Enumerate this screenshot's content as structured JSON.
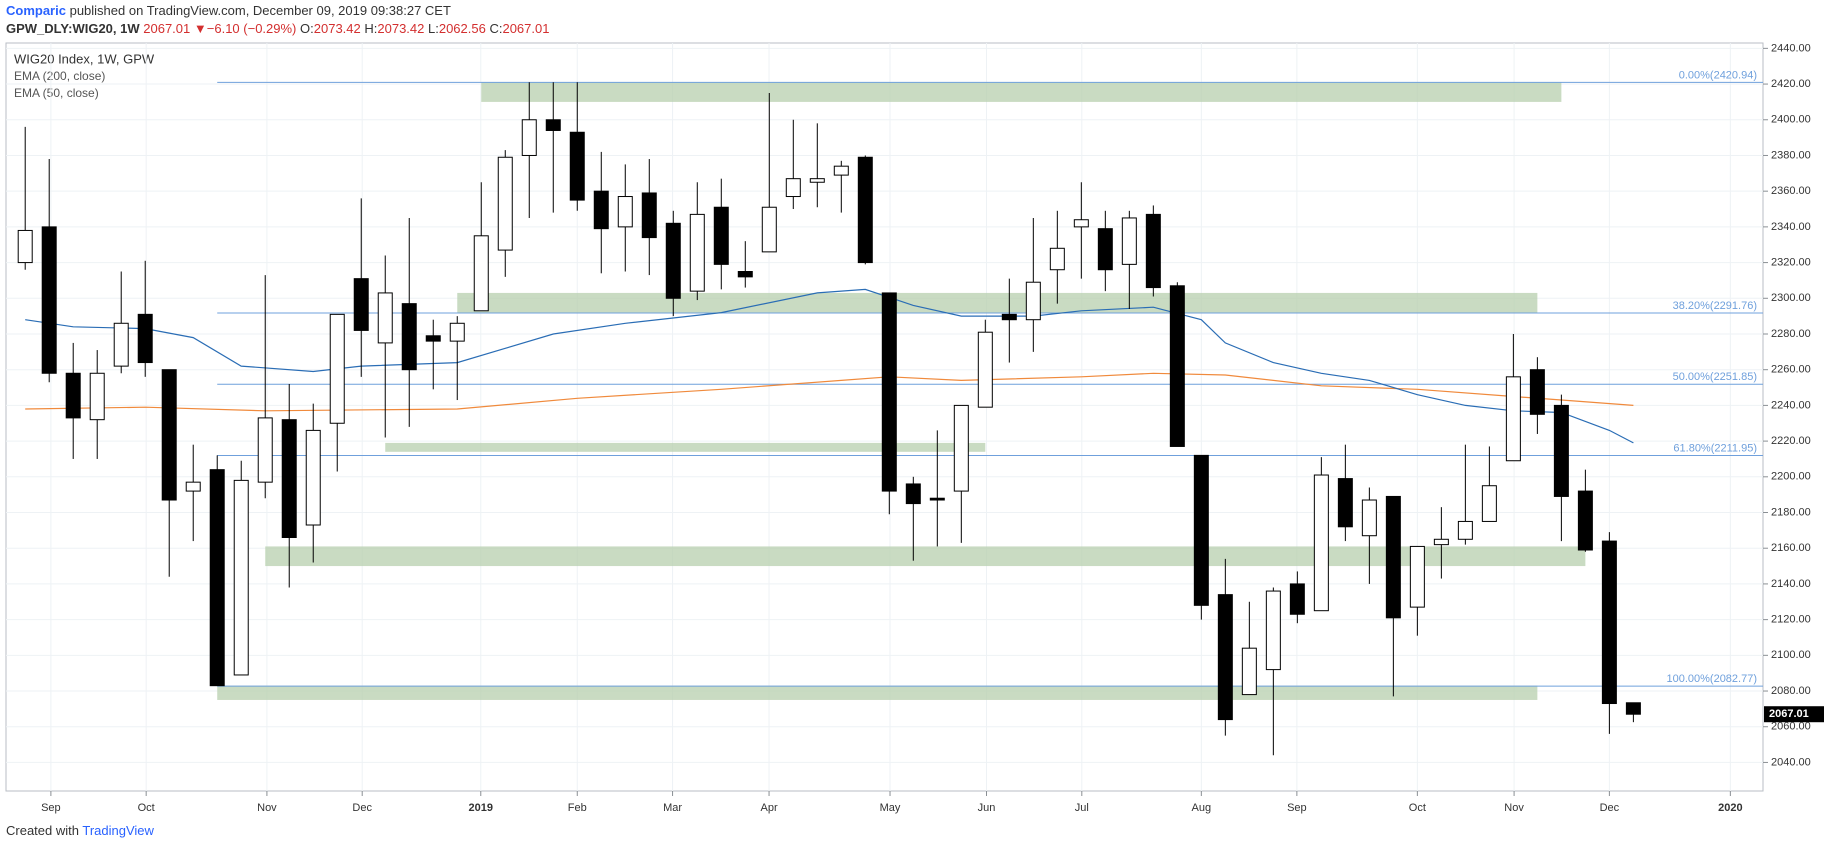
{
  "header": {
    "publisher": "Comparic",
    "published": "published on TradingView.com, December 09, 2019 09:38:27 CET",
    "symbol": "GPW_DLY:WIG20, 1W",
    "last": "2067.01",
    "arrow": "▼",
    "change": "−6.10 (−0.29%)",
    "o_label": "O:",
    "o": "2073.42",
    "h_label": "H:",
    "h": "2073.42",
    "l_label": "L:",
    "l": "2062.56",
    "c_label": "C:",
    "c": "2067.01"
  },
  "footer": {
    "created": "Created with",
    "brand": "TradingView"
  },
  "chart_data": {
    "type": "candlestick",
    "title": "WIG20 Index, 1W, GPW",
    "up_color": "#ffffff",
    "down_color": "#000000",
    "grid": true,
    "open": [
      2320,
      2340,
      2258,
      2232,
      2262,
      2291,
      2260,
      2192,
      2204,
      2089,
      2197,
      2232,
      2173,
      2230,
      2311,
      2275,
      2297,
      2279,
      2276,
      2293,
      2327,
      2380,
      2400,
      2393,
      2360,
      2340,
      2359,
      2342,
      2304,
      2351,
      2315,
      2326,
      2357,
      2365,
      2369,
      2379,
      2303,
      2196,
      2188,
      2192,
      2239,
      2291,
      2288,
      2316,
      2340,
      2339,
      2319,
      2347,
      2307,
      2212,
      2134,
      2078,
      2092,
      2140,
      2125,
      2199,
      2167,
      2189,
      2127,
      2162,
      2165,
      2175,
      2209,
      2260,
      2240,
      2192,
      2164,
      2073.42
    ],
    "high": [
      2396,
      2378,
      2275,
      2271,
      2315,
      2321,
      2260,
      2218,
      2212,
      2209,
      2313,
      2252,
      2241,
      2291,
      2356,
      2324,
      2345,
      2288,
      2290,
      2365,
      2383,
      2421,
      2421,
      2421,
      2382,
      2375,
      2378,
      2349,
      2365,
      2367,
      2332,
      2415,
      2400,
      2398,
      2377,
      2380,
      2303,
      2200,
      2226,
      2240,
      2288,
      2311,
      2345,
      2349,
      2365,
      2349,
      2349,
      2352,
      2309,
      2212,
      2154,
      2130,
      2138,
      2147,
      2211,
      2218,
      2194,
      2189,
      2161,
      2183,
      2218,
      2217,
      2280,
      2267,
      2246,
      2204,
      2169,
      2073.42
    ],
    "low": [
      2316,
      2253,
      2210,
      2210,
      2258,
      2256,
      2144,
      2164,
      2083,
      2089,
      2188,
      2138,
      2152,
      2203,
      2256,
      2222,
      2228,
      2249,
      2243,
      2293,
      2312,
      2345,
      2348,
      2349,
      2314,
      2315,
      2313,
      2290,
      2299,
      2305,
      2306,
      2326,
      2350,
      2351,
      2348,
      2319,
      2179,
      2153,
      2161,
      2163,
      2239,
      2264,
      2270,
      2297,
      2311,
      2304,
      2294,
      2301,
      2217,
      2120,
      2055,
      2078,
      2044,
      2118,
      2125,
      2164,
      2140,
      2077,
      2111,
      2143,
      2162,
      2175,
      2209,
      2224,
      2164,
      2158,
      2056,
      2062.56
    ],
    "close": [
      2338,
      2258,
      2233,
      2258,
      2286,
      2264,
      2187,
      2197,
      2083,
      2198,
      2233,
      2166,
      2226,
      2291,
      2282,
      2303,
      2260,
      2276,
      2286,
      2335,
      2379,
      2400,
      2394,
      2355,
      2339,
      2357,
      2334,
      2300,
      2347,
      2319,
      2312,
      2351,
      2367,
      2367,
      2374,
      2320,
      2192,
      2185,
      2187,
      2240,
      2281,
      2288,
      2309,
      2328,
      2344,
      2316,
      2345,
      2306,
      2217,
      2128,
      2064,
      2104,
      2136,
      2123,
      2201,
      2172,
      2187,
      2121,
      2161,
      2165,
      2175,
      2195,
      2256,
      2235,
      2189,
      2159,
      2073,
      2067.01
    ],
    "series": [
      {
        "name": "EMA (200, close)",
        "color": "#f08a3c",
        "x": [
          0,
          5,
          10,
          18,
          23,
          29,
          34,
          36,
          39,
          44,
          47,
          50,
          54,
          58,
          62,
          64,
          67
        ],
        "values": [
          2238,
          2239,
          2237,
          2238,
          2244,
          2249,
          2254,
          2256,
          2254,
          2256,
          2258,
          2257,
          2251,
          2249,
          2245,
          2243,
          2240
        ]
      },
      {
        "name": "EMA (50, close)",
        "color": "#2a6db5",
        "x": [
          0,
          2,
          5,
          7,
          9,
          12,
          14,
          18,
          20,
          22,
          25,
          29,
          33,
          35,
          37,
          39,
          42,
          44,
          47,
          49,
          50,
          52,
          54,
          56,
          58,
          60,
          62,
          64,
          66,
          67
        ],
        "values": [
          2288,
          2284,
          2283,
          2278,
          2262,
          2259,
          2262,
          2264,
          2272,
          2280,
          2286,
          2292,
          2303,
          2305,
          2296,
          2290,
          2290,
          2293,
          2295,
          2288,
          2275,
          2264,
          2258,
          2254,
          2246,
          2240,
          2237,
          2236,
          2226,
          2219
        ]
      }
    ],
    "fib": [
      {
        "label": "0.00%(2420.94)",
        "value": 2420.94
      },
      {
        "label": "38.20%(2291.76)",
        "value": 2291.76
      },
      {
        "label": "50.00%(2251.85)",
        "value": 2251.85
      },
      {
        "label": "61.80%(2211.95)",
        "value": 2211.95
      },
      {
        "label": "100.00%(2082.77)",
        "value": 2082.77
      }
    ],
    "fib_start": 8,
    "fib_color": "#6fa0dc",
    "zones": [
      {
        "x": [
          19,
          64
        ],
        "y": [
          2410,
          2421
        ]
      },
      {
        "x": [
          18,
          63
        ],
        "y": [
          2292,
          2303
        ]
      },
      {
        "x": [
          15,
          40
        ],
        "y": [
          2214,
          2219
        ]
      },
      {
        "x": [
          10,
          65
        ],
        "y": [
          2150,
          2161
        ]
      },
      {
        "x": [
          8,
          63
        ],
        "y": [
          2075,
          2083
        ]
      }
    ],
    "zone_color": "#b7cfae",
    "price_tag": {
      "value": 2067.01,
      "label": "2067.01"
    },
    "xlim": [
      -0.8,
      72.4
    ],
    "ylim": [
      2024,
      2443
    ],
    "xticks": [
      {
        "value": 1.07,
        "label": "Sep"
      },
      {
        "value": 5.04,
        "label": "Oct"
      },
      {
        "value": 10.07,
        "label": "Nov"
      },
      {
        "value": 14.04,
        "label": "Dec"
      },
      {
        "value": 18.98,
        "label": "2019"
      },
      {
        "value": 23,
        "label": "Feb"
      },
      {
        "value": 26.97,
        "label": "Mar"
      },
      {
        "value": 30.99,
        "label": "Apr"
      },
      {
        "value": 36.03,
        "label": "May"
      },
      {
        "value": 40.05,
        "label": "Jun"
      },
      {
        "value": 44.02,
        "label": "Jul"
      },
      {
        "value": 49,
        "label": "Aug"
      },
      {
        "value": 52.98,
        "label": "Sep"
      },
      {
        "value": 58,
        "label": "Oct"
      },
      {
        "value": 62.03,
        "label": "Nov"
      },
      {
        "value": 66,
        "label": "Dec"
      },
      {
        "value": 71.04,
        "label": "2020"
      }
    ],
    "yticks": [
      {
        "value": 2040,
        "label": "2040.00"
      },
      {
        "value": 2060,
        "label": "2060.00"
      },
      {
        "value": 2080,
        "label": "2080.00"
      },
      {
        "value": 2100,
        "label": "2100.00"
      },
      {
        "value": 2120,
        "label": "2120.00"
      },
      {
        "value": 2140,
        "label": "2140.00"
      },
      {
        "value": 2160,
        "label": "2160.00"
      },
      {
        "value": 2180,
        "label": "2180.00"
      },
      {
        "value": 2200,
        "label": "2200.00"
      },
      {
        "value": 2220,
        "label": "2220.00"
      },
      {
        "value": 2240,
        "label": "2240.00"
      },
      {
        "value": 2260,
        "label": "2260.00"
      },
      {
        "value": 2280,
        "label": "2280.00"
      },
      {
        "value": 2300,
        "label": "2300.00"
      },
      {
        "value": 2320,
        "label": "2320.00"
      },
      {
        "value": 2340,
        "label": "2340.00"
      },
      {
        "value": 2360,
        "label": "2360.00"
      },
      {
        "value": 2380,
        "label": "2380.00"
      },
      {
        "value": 2400,
        "label": "2400.00"
      },
      {
        "value": 2420,
        "label": "2420.00"
      },
      {
        "value": 2440,
        "label": "2440.00"
      }
    ]
  }
}
